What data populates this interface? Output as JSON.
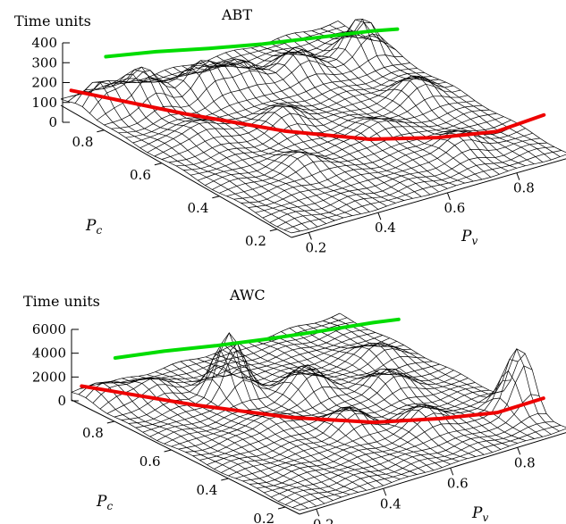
{
  "chart_data": [
    {
      "type": "surface",
      "title": "ABT",
      "zlabel": "Time units",
      "xlabel_main": "P",
      "xlabel_sub": "v",
      "ylabel_main": "P",
      "ylabel_sub": "c",
      "x_ticks": [
        "0.2",
        "0.4",
        "0.6",
        "0.8"
      ],
      "y_ticks": [
        "0.2",
        "0.4",
        "0.6",
        "0.8"
      ],
      "z_ticks": [
        "0",
        "100",
        "200",
        "300",
        "400"
      ],
      "zlim": [
        0,
        400
      ],
      "xlim": [
        0.15,
        0.95
      ],
      "ylim": [
        0.15,
        0.95
      ],
      "grid_n": 32,
      "base_level": 20,
      "bumps": [
        {
          "x": 0.88,
          "y": 0.78,
          "h": 210,
          "s": 0.035
        },
        {
          "x": 0.85,
          "y": 0.55,
          "h": 110,
          "s": 0.04
        },
        {
          "x": 0.7,
          "y": 0.78,
          "h": 140,
          "s": 0.04
        },
        {
          "x": 0.55,
          "y": 0.8,
          "h": 130,
          "s": 0.04
        },
        {
          "x": 0.45,
          "y": 0.82,
          "h": 160,
          "s": 0.04
        },
        {
          "x": 0.3,
          "y": 0.85,
          "h": 190,
          "s": 0.04
        },
        {
          "x": 0.2,
          "y": 0.88,
          "h": 120,
          "s": 0.035
        },
        {
          "x": 0.5,
          "y": 0.6,
          "h": 90,
          "s": 0.04
        },
        {
          "x": 0.65,
          "y": 0.45,
          "h": 70,
          "s": 0.04
        },
        {
          "x": 0.4,
          "y": 0.4,
          "h": 60,
          "s": 0.04
        },
        {
          "x": 0.75,
          "y": 0.3,
          "h": 80,
          "s": 0.04
        },
        {
          "x": 0.3,
          "y": 0.65,
          "h": 75,
          "s": 0.04
        }
      ],
      "series": [
        {
          "color": "#ee0000",
          "points": [
            [
              0.18,
              0.95,
              60
            ],
            [
              0.3,
              0.7,
              90
            ],
            [
              0.42,
              0.5,
              110
            ],
            [
              0.55,
              0.36,
              120
            ],
            [
              0.68,
              0.28,
              130
            ],
            [
              0.8,
              0.22,
              150
            ],
            [
              0.92,
              0.2,
              190
            ]
          ]
        },
        {
          "color": "#00dd00",
          "points": [
            [
              0.28,
              0.95,
              180
            ],
            [
              0.4,
              0.92,
              170
            ],
            [
              0.52,
              0.88,
              160
            ],
            [
              0.64,
              0.84,
              155
            ],
            [
              0.76,
              0.8,
              160
            ],
            [
              0.88,
              0.75,
              175
            ],
            [
              0.93,
              0.72,
              185
            ]
          ]
        }
      ]
    },
    {
      "type": "surface",
      "title": "AWC",
      "zlabel": "Time units",
      "xlabel_main": "P",
      "xlabel_sub": "v",
      "ylabel_main": "P",
      "ylabel_sub": "c",
      "x_ticks": [
        "0.2",
        "0.4",
        "0.6",
        "0.8"
      ],
      "y_ticks": [
        "0.2",
        "0.4",
        "0.6",
        "0.8"
      ],
      "z_ticks": [
        "0",
        "2000",
        "4000",
        "6000"
      ],
      "zlim": [
        0,
        6000
      ],
      "xlim": [
        0.15,
        0.95
      ],
      "ylim": [
        0.15,
        0.95
      ],
      "grid_n": 32,
      "base_level": 300,
      "bumps": [
        {
          "x": 0.93,
          "y": 0.3,
          "h": 5200,
          "s": 0.035
        },
        {
          "x": 0.45,
          "y": 0.75,
          "h": 5000,
          "s": 0.035
        },
        {
          "x": 0.6,
          "y": 0.65,
          "h": 2400,
          "s": 0.04
        },
        {
          "x": 0.75,
          "y": 0.55,
          "h": 2000,
          "s": 0.04
        },
        {
          "x": 0.3,
          "y": 0.85,
          "h": 1500,
          "s": 0.04
        },
        {
          "x": 0.2,
          "y": 0.9,
          "h": 1200,
          "s": 0.04
        },
        {
          "x": 0.55,
          "y": 0.45,
          "h": 1500,
          "s": 0.04
        },
        {
          "x": 0.7,
          "y": 0.35,
          "h": 1800,
          "s": 0.04
        },
        {
          "x": 0.85,
          "y": 0.7,
          "h": 1400,
          "s": 0.04
        },
        {
          "x": 0.4,
          "y": 0.55,
          "h": 900,
          "s": 0.04
        }
      ],
      "series": [
        {
          "color": "#ee0000",
          "points": [
            [
              0.18,
              0.95,
              900
            ],
            [
              0.3,
              0.7,
              1300
            ],
            [
              0.42,
              0.5,
              1600
            ],
            [
              0.55,
              0.36,
              1750
            ],
            [
              0.68,
              0.28,
              1900
            ],
            [
              0.8,
              0.22,
              2100
            ],
            [
              0.92,
              0.2,
              2500
            ]
          ]
        },
        {
          "color": "#00dd00",
          "points": [
            [
              0.28,
              0.95,
              2400
            ],
            [
              0.4,
              0.92,
              2300
            ],
            [
              0.52,
              0.88,
              2200
            ],
            [
              0.64,
              0.84,
              2200
            ],
            [
              0.76,
              0.8,
              2300
            ],
            [
              0.88,
              0.75,
              2600
            ],
            [
              0.93,
              0.72,
              2800
            ]
          ]
        }
      ]
    }
  ]
}
